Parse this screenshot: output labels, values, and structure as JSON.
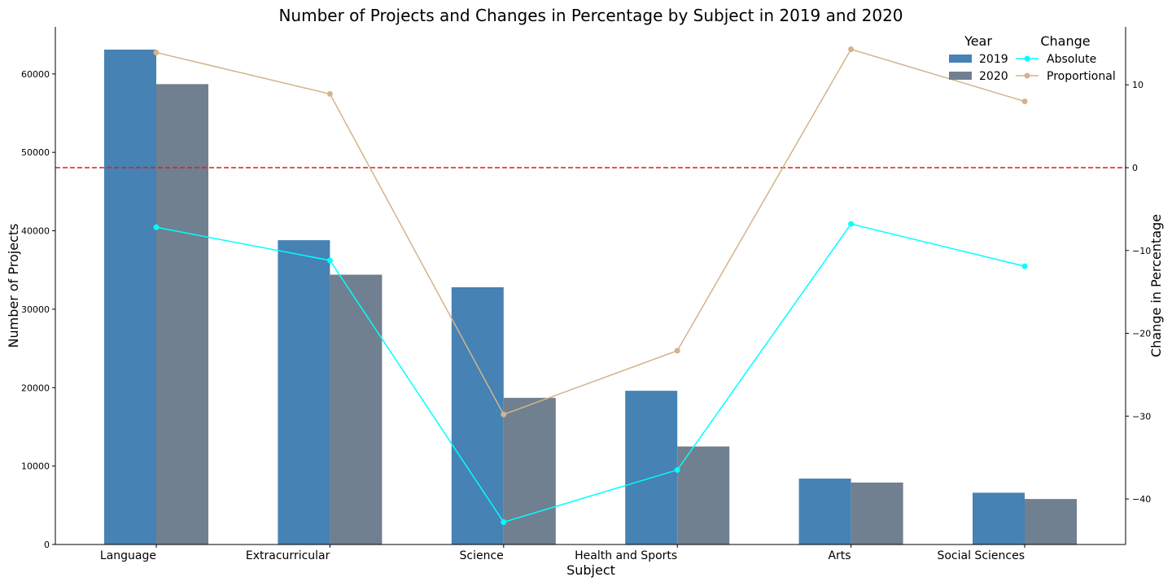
{
  "chart_data": {
    "type": "bar",
    "title": "Number of Projects and Changes in Percentage by Subject in 2019 and 2020",
    "xlabel": "Subject",
    "ylabel": "Number of Projects",
    "ylabel_right": "Change in Percentage",
    "categories": [
      "Language",
      "Extracurricular",
      "Science",
      "Health and Sports",
      "Arts",
      "Social Sciences"
    ],
    "ylim": [
      0,
      66000
    ],
    "yticks": [
      0,
      10000,
      20000,
      30000,
      40000,
      50000,
      60000
    ],
    "ylim_right": [
      -45.5,
      17
    ],
    "yticks_right": [
      -40,
      -30,
      -20,
      -10,
      0,
      10
    ],
    "reference_line": {
      "y_right": 0,
      "color": "#e41a1c",
      "style": "dashed"
    },
    "grid": false,
    "bar_series": [
      {
        "name": "2019",
        "color": "#4682b4",
        "values": [
          63100,
          38800,
          32800,
          19600,
          8400,
          6600
        ]
      },
      {
        "name": "2020",
        "color": "#708090",
        "values": [
          58700,
          34400,
          18700,
          12500,
          7900,
          5800
        ]
      }
    ],
    "line_series": [
      {
        "name": "Absolute",
        "color": "#00ffff",
        "axis": "right",
        "values": [
          -7.2,
          -11.2,
          -42.8,
          -36.5,
          -6.8,
          -11.9
        ]
      },
      {
        "name": "Proportional",
        "color": "#d2b48c",
        "axis": "right",
        "values": [
          13.9,
          8.9,
          -29.8,
          -22.1,
          14.3,
          8.0
        ]
      }
    ],
    "legend": {
      "placement": "top-right",
      "groups": [
        {
          "title": "Year",
          "entries": [
            "2019",
            "2020"
          ]
        },
        {
          "title": "Change",
          "entries": [
            "Absolute",
            "Proportional"
          ]
        }
      ]
    }
  }
}
